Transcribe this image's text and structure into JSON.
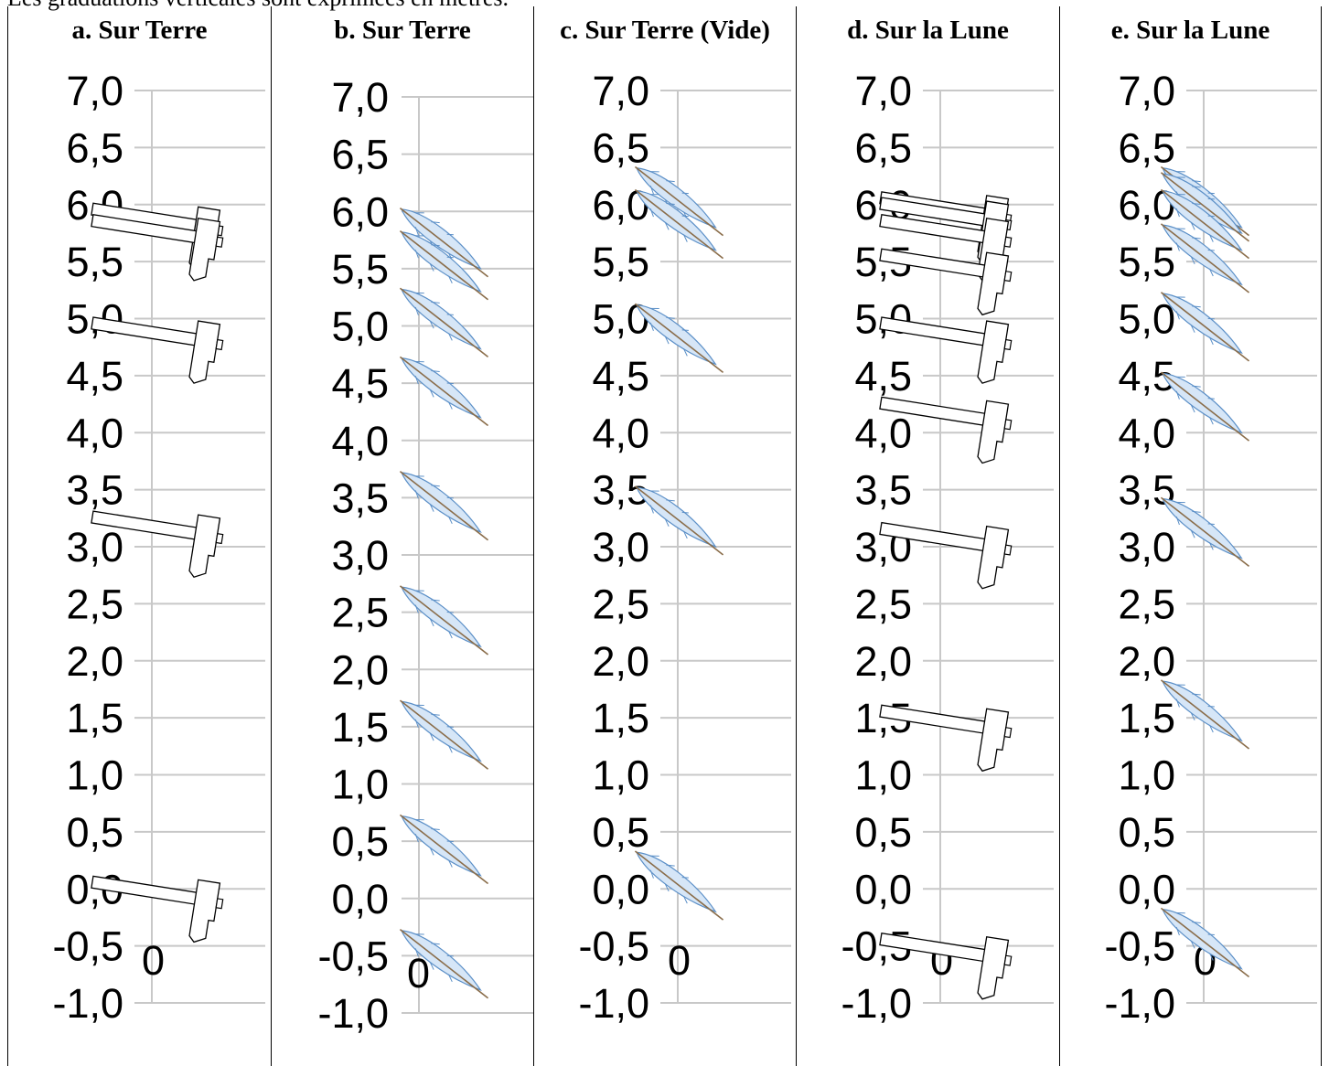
{
  "top_note": "Les graduations verticales sont exprimées en mètres.",
  "chart_data": [
    {
      "type": "scatter",
      "title": "a. Sur Terre",
      "object": "hammer",
      "ticks": [
        "7,0",
        "6,5",
        "6,0",
        "5,5",
        "5,0",
        "4,5",
        "4,0",
        "3,5",
        "3,0",
        "2,5",
        "2,0",
        "1,5",
        "1,0",
        "0,5",
        "0,0",
        "-0,5",
        "-1,0"
      ],
      "x_tick_label": "0",
      "ylim": [
        -1.0,
        7.0
      ],
      "grid": true,
      "y_values": [
        5.9,
        5.8,
        4.9,
        3.2,
        0.0
      ]
    },
    {
      "type": "scatter",
      "title": "b. Sur Terre",
      "object": "feather",
      "ticks": [
        "7,0",
        "6,5",
        "6,0",
        "5,5",
        "5,0",
        "4,5",
        "4,0",
        "3,5",
        "3,0",
        "2,5",
        "2,0",
        "1,5",
        "1,0",
        "0,5",
        "0,0",
        "-0,5",
        "-1,0"
      ],
      "x_tick_label": "0",
      "ylim": [
        -1.0,
        7.0
      ],
      "grid": true,
      "y_values": [
        5.7,
        5.5,
        5.0,
        4.4,
        3.4,
        2.4,
        1.4,
        0.4,
        -0.6
      ]
    },
    {
      "type": "scatter",
      "title": "c. Sur Terre (Vide)",
      "object": "feather",
      "ticks": [
        "7,0",
        "6,5",
        "6,0",
        "5,5",
        "5,0",
        "4,5",
        "4,0",
        "3,5",
        "3,0",
        "2,5",
        "2,0",
        "1,5",
        "1,0",
        "0,5",
        "0,0",
        "-0,5",
        "-1,0"
      ],
      "x_tick_label": "0",
      "ylim": [
        -1.0,
        7.0
      ],
      "grid": true,
      "y_values": [
        6.0,
        5.8,
        4.8,
        3.2,
        0.0
      ]
    },
    {
      "type": "scatter",
      "title": "d. Sur la Lune",
      "object": "hammer",
      "ticks": [
        "7,0",
        "6,5",
        "6,0",
        "5,5",
        "5,0",
        "4,5",
        "4,0",
        "3,5",
        "3,0",
        "2,5",
        "2,0",
        "1,5",
        "1,0",
        "0,5",
        "0,0",
        "-0,5",
        "-1,0"
      ],
      "x_tick_label": "0",
      "ylim": [
        -1.0,
        7.0
      ],
      "grid": true,
      "y_values": [
        6.0,
        5.95,
        5.8,
        5.5,
        4.9,
        4.2,
        3.1,
        1.5,
        -0.5
      ]
    },
    {
      "type": "scatter",
      "title": "e. Sur la Lune",
      "object": "feather",
      "ticks": [
        "7,0",
        "6,5",
        "6,0",
        "5,5",
        "5,0",
        "4,5",
        "4,0",
        "3,5",
        "3,0",
        "2,5",
        "2,0",
        "1,5",
        "1,0",
        "0,5",
        "0,0",
        "-0,5",
        "-1,0"
      ],
      "x_tick_label": "0",
      "ylim": [
        -1.0,
        7.0
      ],
      "grid": true,
      "y_values": [
        6.0,
        5.95,
        5.8,
        5.5,
        4.9,
        4.2,
        3.1,
        1.5,
        -0.5
      ]
    }
  ],
  "colors": {
    "grid": "#c8c8c8",
    "axis": "#c8c8c8",
    "feather_fill": "#d6e6f7",
    "feather_edge": "#5b8fc7",
    "feather_shaft": "#8a6d4a",
    "hammer_stroke": "#000000"
  }
}
